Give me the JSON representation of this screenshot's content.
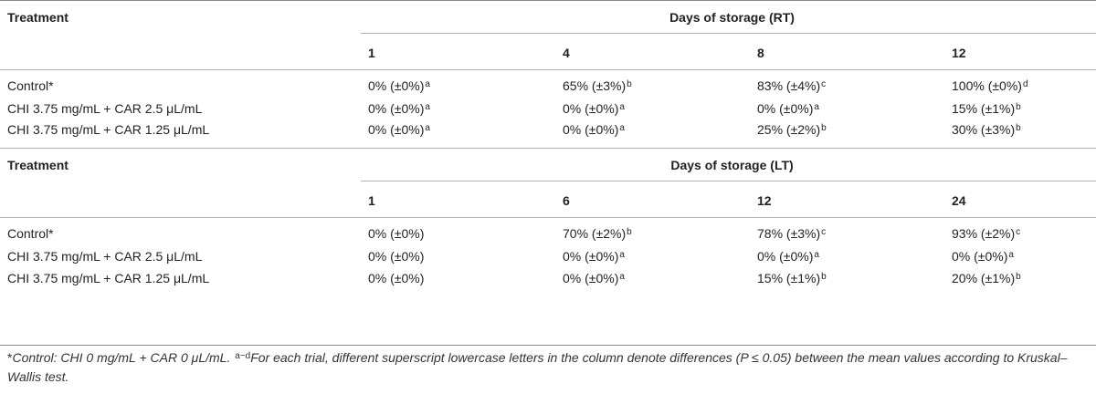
{
  "sections": [
    {
      "treatment_label": "Treatment",
      "days_title": "Days of storage (RT)",
      "days": [
        "1",
        "4",
        "8",
        "12"
      ],
      "rows": [
        {
          "name": "Control*",
          "cells": [
            {
              "v": "0% (±0%)",
              "s": "a"
            },
            {
              "v": "65% (±3%)",
              "s": "b"
            },
            {
              "v": "83% (±4%)",
              "s": "c"
            },
            {
              "v": "100% (±0%)",
              "s": "d"
            }
          ]
        },
        {
          "name": "CHI 3.75 mg/mL + CAR 2.5 μL/mL",
          "cells": [
            {
              "v": "0% (±0%)",
              "s": "a"
            },
            {
              "v": "0% (±0%)",
              "s": "a"
            },
            {
              "v": "0% (±0%)",
              "s": "a"
            },
            {
              "v": "15% (±1%)",
              "s": "b"
            }
          ]
        },
        {
          "name": "CHI 3.75 mg/mL + CAR 1.25 μL/mL",
          "cells": [
            {
              "v": "0% (±0%)",
              "s": "a"
            },
            {
              "v": "0% (±0%)",
              "s": "a"
            },
            {
              "v": "25% (±2%)",
              "s": "b"
            },
            {
              "v": "30% (±3%)",
              "s": "b"
            }
          ]
        }
      ]
    },
    {
      "treatment_label": "Treatment",
      "days_title": "Days of storage (LT)",
      "days": [
        "1",
        "6",
        "12",
        "24"
      ],
      "rows": [
        {
          "name": "Control*",
          "cells": [
            {
              "v": "0% (±0%)",
              "s": ""
            },
            {
              "v": "70% (±2%)",
              "s": "b"
            },
            {
              "v": "78% (±3%)",
              "s": "c"
            },
            {
              "v": "93% (±2%)",
              "s": "c"
            }
          ]
        },
        {
          "name": "CHI 3.75 mg/mL + CAR 2.5 μL/mL",
          "cells": [
            {
              "v": "0% (±0%)",
              "s": ""
            },
            {
              "v": "0% (±0%)",
              "s": "a"
            },
            {
              "v": "0% (±0%)",
              "s": "a"
            },
            {
              "v": "0% (±0%)",
              "s": "a"
            }
          ]
        },
        {
          "name": "CHI 3.75 mg/mL + CAR 1.25 μL/mL",
          "cells": [
            {
              "v": "0% (±0%)",
              "s": ""
            },
            {
              "v": "0% (±0%)",
              "s": "a"
            },
            {
              "v": "15% (±1%)",
              "s": "b"
            },
            {
              "v": "20% (±1%)",
              "s": "b"
            }
          ]
        }
      ]
    }
  ],
  "footnote": {
    "star": "*",
    "control_def": "Control: CHI 0 mg/mL + CAR 0 μL/mL.",
    "sup_range": "a−d",
    "explanation": "For each trial, different superscript lowercase letters in the column denote differences (P ≤ 0.05) between the mean values according to Kruskal–Wallis test."
  }
}
